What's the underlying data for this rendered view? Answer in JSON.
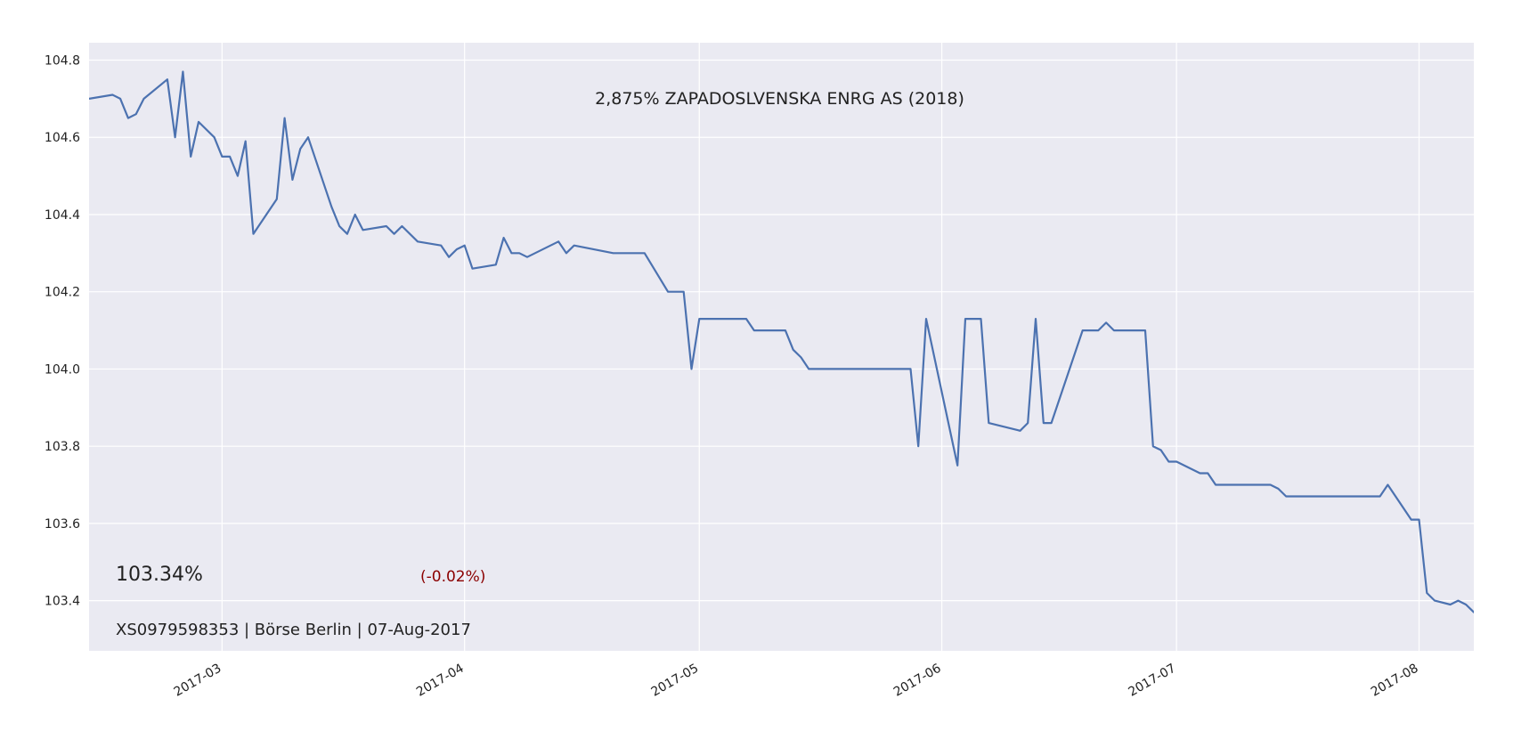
{
  "chart_data": {
    "type": "line",
    "title": "2,875% ZAPADOSLVENSKA ENRG AS (2018)",
    "xlabel": "",
    "ylabel": "",
    "grid": true,
    "xlim": [
      "2017-02-12",
      "2017-08-08"
    ],
    "ylim": [
      103.27,
      104.845
    ],
    "x_ticks": [
      "2017-03",
      "2017-04",
      "2017-05",
      "2017-06",
      "2017-07",
      "2017-08"
    ],
    "y_ticks": [
      "103.4",
      "103.6",
      "103.8",
      "104.0",
      "104.2",
      "104.4",
      "104.6",
      "104.8"
    ],
    "series": [
      {
        "color": "#4c72b0",
        "points": [
          [
            "2017-02-12",
            104.7
          ],
          [
            "2017-02-15",
            104.71
          ],
          [
            "2017-02-16",
            104.7
          ],
          [
            "2017-02-17",
            104.65
          ],
          [
            "2017-02-18",
            104.66
          ],
          [
            "2017-02-19",
            104.7
          ],
          [
            "2017-02-22",
            104.75
          ],
          [
            "2017-02-23",
            104.6
          ],
          [
            "2017-02-24",
            104.77
          ],
          [
            "2017-02-25",
            104.55
          ],
          [
            "2017-02-26",
            104.64
          ],
          [
            "2017-02-28",
            104.6
          ],
          [
            "2017-03-01",
            104.55
          ],
          [
            "2017-03-02",
            104.55
          ],
          [
            "2017-03-03",
            104.5
          ],
          [
            "2017-03-04",
            104.59
          ],
          [
            "2017-03-05",
            104.35
          ],
          [
            "2017-03-08",
            104.44
          ],
          [
            "2017-03-09",
            104.65
          ],
          [
            "2017-03-10",
            104.49
          ],
          [
            "2017-03-11",
            104.57
          ],
          [
            "2017-03-12",
            104.6
          ],
          [
            "2017-03-15",
            104.42
          ],
          [
            "2017-03-16",
            104.37
          ],
          [
            "2017-03-17",
            104.35
          ],
          [
            "2017-03-18",
            104.4
          ],
          [
            "2017-03-19",
            104.36
          ],
          [
            "2017-03-22",
            104.37
          ],
          [
            "2017-03-23",
            104.35
          ],
          [
            "2017-03-24",
            104.37
          ],
          [
            "2017-03-26",
            104.33
          ],
          [
            "2017-03-29",
            104.32
          ],
          [
            "2017-03-30",
            104.29
          ],
          [
            "2017-03-31",
            104.31
          ],
          [
            "2017-04-01",
            104.32
          ],
          [
            "2017-04-02",
            104.26
          ],
          [
            "2017-04-05",
            104.27
          ],
          [
            "2017-04-06",
            104.34
          ],
          [
            "2017-04-07",
            104.3
          ],
          [
            "2017-04-08",
            104.3
          ],
          [
            "2017-04-09",
            104.29
          ],
          [
            "2017-04-13",
            104.33
          ],
          [
            "2017-04-14",
            104.3
          ],
          [
            "2017-04-15",
            104.32
          ],
          [
            "2017-04-20",
            104.3
          ],
          [
            "2017-04-24",
            104.3
          ],
          [
            "2017-04-27",
            104.2
          ],
          [
            "2017-04-29",
            104.2
          ],
          [
            "2017-04-30",
            104.0
          ],
          [
            "2017-05-01",
            104.13
          ],
          [
            "2017-05-03",
            104.13
          ],
          [
            "2017-05-07",
            104.13
          ],
          [
            "2017-05-08",
            104.1
          ],
          [
            "2017-05-12",
            104.1
          ],
          [
            "2017-05-13",
            104.05
          ],
          [
            "2017-05-14",
            104.03
          ],
          [
            "2017-05-15",
            104.0
          ],
          [
            "2017-05-28",
            104.0
          ],
          [
            "2017-05-29",
            103.8
          ],
          [
            "2017-05-30",
            104.13
          ],
          [
            "2017-06-03",
            103.75
          ],
          [
            "2017-06-04",
            104.13
          ],
          [
            "2017-06-06",
            104.13
          ],
          [
            "2017-06-07",
            103.86
          ],
          [
            "2017-06-11",
            103.84
          ],
          [
            "2017-06-12",
            103.86
          ],
          [
            "2017-06-13",
            104.13
          ],
          [
            "2017-06-14",
            103.86
          ],
          [
            "2017-06-15",
            103.86
          ],
          [
            "2017-06-19",
            104.1
          ],
          [
            "2017-06-21",
            104.1
          ],
          [
            "2017-06-22",
            104.12
          ],
          [
            "2017-06-23",
            104.1
          ],
          [
            "2017-06-27",
            104.1
          ],
          [
            "2017-06-28",
            103.8
          ],
          [
            "2017-06-29",
            103.79
          ],
          [
            "2017-06-30",
            103.76
          ],
          [
            "2017-07-01",
            103.76
          ],
          [
            "2017-07-04",
            103.73
          ],
          [
            "2017-07-05",
            103.73
          ],
          [
            "2017-07-06",
            103.7
          ],
          [
            "2017-07-13",
            103.7
          ],
          [
            "2017-07-14",
            103.69
          ],
          [
            "2017-07-15",
            103.67
          ],
          [
            "2017-07-27",
            103.67
          ],
          [
            "2017-07-28",
            103.7
          ],
          [
            "2017-07-31",
            103.61
          ],
          [
            "2017-08-01",
            103.61
          ],
          [
            "2017-08-02",
            103.42
          ],
          [
            "2017-08-03",
            103.4
          ],
          [
            "2017-08-05",
            103.39
          ],
          [
            "2017-08-06",
            103.4
          ],
          [
            "2017-08-07",
            103.39
          ],
          [
            "2017-08-08",
            103.37
          ],
          [
            "2017-08-09",
            103.36
          ],
          [
            "2017-08-12",
            103.34
          ]
        ]
      }
    ]
  },
  "price_label": "103.34%",
  "change_label": "(-0.02%)",
  "info_label": "XS0979598353 | Börse Berlin | 07-Aug-2017",
  "colors": {
    "plot_bg": "#eaeaf2",
    "grid": "#ffffff",
    "line": "#4c72b0",
    "change": "#8b0000"
  }
}
